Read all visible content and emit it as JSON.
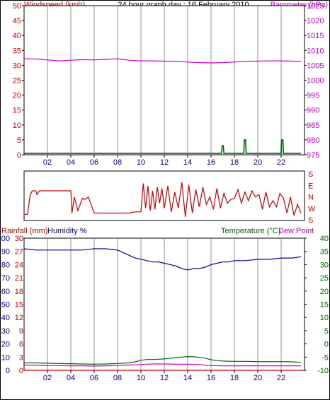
{
  "title": "24 hour graph day : 16 February 2010",
  "hour_labels": [
    "02",
    "04",
    "06",
    "08",
    "10",
    "12",
    "14",
    "16",
    "18",
    "20",
    "22"
  ],
  "colors": {
    "red": "#cc0000",
    "magenta": "#cc00cc",
    "green": "#006600",
    "blue": "#000099",
    "grid": "#c8c8c8"
  },
  "chart_data": [
    {
      "type": "line",
      "x_unit": "hour",
      "xlim": [
        0,
        24
      ],
      "left_axis": {
        "label": "Windspeed (kmh)",
        "ticks": [
          0,
          5,
          10,
          15,
          20,
          25,
          30,
          35,
          40,
          45,
          50
        ],
        "ylim": [
          0,
          50
        ]
      },
      "right_axis": {
        "label": "Barometer (hPa)",
        "ticks": [
          975,
          980,
          985,
          990,
          995,
          1000,
          1005,
          1010,
          1015,
          1020,
          1025
        ],
        "ylim": [
          975,
          1025
        ]
      },
      "series": [
        {
          "name": "Barometer (hPa)",
          "axis": "right",
          "x": [
            0,
            1,
            2,
            3,
            4,
            5,
            6,
            7,
            8,
            9,
            10,
            11,
            12,
            13,
            14,
            15,
            16,
            17,
            18,
            19,
            20,
            21,
            22,
            23,
            23.7
          ],
          "values": [
            1007.2,
            1007.1,
            1006.8,
            1006.5,
            1006.7,
            1006.9,
            1006.8,
            1007.0,
            1007.2,
            1006.7,
            1006.5,
            1006.5,
            1006.4,
            1006.3,
            1006.1,
            1005.9,
            1005.8,
            1005.9,
            1006.1,
            1006.3,
            1006.4,
            1006.5,
            1006.5,
            1006.4,
            1006.3
          ]
        },
        {
          "name": "Windspeed (kmh)",
          "axis": "left",
          "x": [
            0,
            16.9,
            16.95,
            17.05,
            17.1,
            18.8,
            18.85,
            18.95,
            19.0,
            22.0,
            22.05,
            22.15,
            22.2,
            23.7
          ],
          "values": [
            0.5,
            0.5,
            3,
            3,
            0.5,
            0.5,
            5,
            5,
            0.5,
            0.5,
            5,
            5,
            0.5,
            0.5
          ]
        }
      ]
    },
    {
      "type": "line",
      "x_unit": "hour",
      "xlim": [
        0,
        24
      ],
      "axis_labels": [
        "S",
        "E",
        "N",
        "W",
        "S"
      ],
      "ylim": [
        0,
        4
      ],
      "series": [
        {
          "name": "Wind Direction",
          "x": [
            0,
            0.3,
            0.5,
            0.7,
            1.0,
            1.1,
            1.3,
            1.5,
            2.0,
            3.0,
            4.0,
            4.1,
            4.3,
            4.6,
            5.0,
            5.2,
            5.5,
            6.0,
            7.0,
            8.0,
            9.0,
            9.5,
            10.0,
            10.2,
            10.4,
            10.6,
            10.8,
            11.0,
            11.2,
            11.4,
            11.6,
            11.8,
            12.0,
            12.3,
            12.6,
            12.9,
            13.2,
            13.5,
            13.8,
            14.1,
            14.4,
            14.7,
            15.0,
            15.3,
            15.6,
            15.9,
            16.2,
            16.5,
            16.8,
            17.1,
            17.4,
            17.7,
            18.0,
            18.3,
            18.6,
            18.9,
            19.2,
            19.5,
            19.8,
            20.1,
            20.4,
            20.7,
            21.0,
            21.3,
            21.6,
            21.9,
            22.2,
            22.5,
            22.8,
            23.1,
            23.4,
            23.7
          ],
          "values": [
            0.5,
            0.5,
            2.0,
            2.4,
            2.4,
            2.1,
            2.4,
            2.4,
            2.4,
            2.4,
            2.4,
            0.6,
            1.9,
            0.8,
            1.8,
            1.7,
            1.9,
            0.6,
            0.6,
            0.6,
            0.6,
            0.7,
            0.7,
            3.0,
            1.0,
            2.8,
            0.8,
            2.4,
            0.9,
            2.7,
            1.4,
            2.6,
            1.0,
            2.8,
            0.7,
            2.3,
            1.0,
            3.1,
            0.3,
            2.9,
            0.6,
            2.5,
            1.1,
            2.7,
            1.3,
            1.9,
            0.9,
            2.6,
            1.0,
            2.2,
            1.4,
            1.7,
            1.8,
            2.5,
            1.4,
            2.3,
            1.6,
            2.4,
            1.9,
            2.1,
            0.9,
            2.3,
            1.1,
            1.6,
            1.1,
            2.2,
            1.8,
            0.6,
            1.9,
            0.4,
            1.3,
            0.6
          ]
        }
      ]
    },
    {
      "type": "line",
      "x_unit": "hour",
      "xlim": [
        0,
        24
      ],
      "axes": [
        {
          "label": "Rainfall (mm)",
          "side": "left-outer",
          "ticks": [
            0,
            3,
            6,
            9,
            12,
            15,
            18,
            21,
            24,
            27,
            30
          ],
          "ylim": [
            0,
            30
          ]
        },
        {
          "label": "Humidity %",
          "side": "left-inner",
          "ticks": [
            0,
            10,
            20,
            30,
            40,
            50,
            60,
            70,
            80,
            90,
            100
          ],
          "ylim": [
            0,
            100
          ]
        },
        {
          "label": "Temperature (°C)",
          "side": "right",
          "ticks": [
            -10,
            -5,
            0,
            5,
            10,
            15,
            20,
            25,
            30,
            35,
            40
          ],
          "ylim": [
            -10,
            40
          ]
        },
        {
          "label": "Dew Point",
          "side": "right"
        }
      ],
      "series": [
        {
          "name": "Humidity %",
          "axis": "Humidity %",
          "x": [
            0,
            1,
            2,
            3,
            4,
            5,
            6,
            7,
            8,
            8.5,
            9,
            9.5,
            10,
            10.5,
            11,
            11.5,
            12,
            12.5,
            13,
            13.5,
            14,
            14.5,
            15,
            15.5,
            16,
            16.5,
            17,
            17.5,
            18,
            19,
            20,
            21,
            22,
            23,
            23.7
          ],
          "values": [
            92,
            91,
            91,
            91,
            91,
            91,
            92,
            92,
            91,
            89,
            87,
            85,
            84,
            83,
            82,
            82,
            81,
            80,
            79,
            77,
            76,
            77,
            77,
            78,
            80,
            81,
            82,
            82,
            83,
            83,
            84,
            84,
            85,
            85,
            86
          ]
        },
        {
          "name": "Temperature (°C)",
          "axis": "Temperature (°C)",
          "x": [
            0,
            1,
            2,
            3,
            4,
            5,
            6,
            7,
            8,
            9,
            9.5,
            10,
            10.5,
            11,
            11.5,
            12,
            12.5,
            13,
            13.5,
            14,
            14.5,
            15,
            15.5,
            16,
            16.5,
            17,
            18,
            19,
            20,
            21,
            22,
            23,
            23.7
          ],
          "values": [
            -7.2,
            -7.2,
            -7.3,
            -7.4,
            -7.5,
            -7.6,
            -7.7,
            -7.6,
            -7.4,
            -7.2,
            -6.8,
            -6.2,
            -5.9,
            -5.9,
            -5.8,
            -5.7,
            -5.4,
            -5.2,
            -5.0,
            -4.8,
            -4.9,
            -5.1,
            -5.4,
            -6.0,
            -6.3,
            -6.5,
            -6.6,
            -6.6,
            -6.7,
            -6.7,
            -6.7,
            -6.8,
            -7.0
          ]
        },
        {
          "name": "Dew Point",
          "axis": "Temperature (°C)",
          "x": [
            0,
            1,
            2,
            3,
            4,
            5,
            6,
            7,
            8,
            9,
            10,
            11,
            12,
            13,
            14,
            15,
            16,
            17,
            18,
            19,
            20,
            21,
            22,
            23,
            23.7
          ],
          "values": [
            -8.0,
            -8.1,
            -8.2,
            -8.2,
            -8.3,
            -8.3,
            -8.4,
            -8.3,
            -8.2,
            -8.0,
            -7.8,
            -7.6,
            -7.6,
            -7.7,
            -7.7,
            -7.8,
            -8.2,
            -8.3,
            -8.3,
            -8.3,
            -8.3,
            -8.3,
            -8.3,
            -8.3,
            -8.3
          ]
        },
        {
          "name": "Rainfall (mm)",
          "axis": "Rainfall (mm)",
          "x": [
            0,
            23.7
          ],
          "values": [
            0,
            0
          ]
        }
      ]
    }
  ]
}
